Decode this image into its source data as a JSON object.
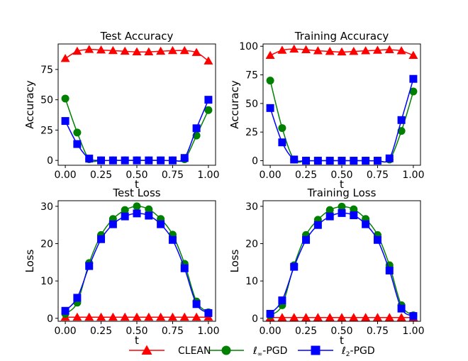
{
  "colors": {
    "clean": "#ff0000",
    "linf": "#008000",
    "l2": "#0000ff"
  },
  "legend": {
    "clean_label": "CLEAN",
    "linf_prefix": "ℓ",
    "linf_sub": "∞",
    "linf_suffix": "-PGD",
    "l2_prefix": "ℓ",
    "l2_sub": "2",
    "l2_suffix": "-PGD"
  },
  "chart_data": [
    {
      "type": "line",
      "title": "Test Accuracy",
      "xlabel": "t",
      "ylabel": "Accuracy",
      "xlim": [
        -0.05,
        1.05
      ],
      "ylim": [
        -4,
        96
      ],
      "xticks": [
        0.0,
        0.25,
        0.5,
        0.75,
        1.0
      ],
      "xtick_labels": [
        "0.00",
        "0.25",
        "0.50",
        "0.75",
        "1.00"
      ],
      "yticks": [
        0,
        25,
        50,
        75
      ],
      "ytick_labels": [
        "0",
        "25",
        "50",
        "75"
      ],
      "x": [
        0.0,
        0.0833,
        0.1667,
        0.25,
        0.3333,
        0.4167,
        0.5,
        0.5833,
        0.6667,
        0.75,
        0.8333,
        0.9167,
        1.0
      ],
      "series": [
        {
          "name": "CLEAN",
          "key": "clean",
          "marker": "triangle",
          "values": [
            84,
            90,
            91.5,
            91,
            90.5,
            90,
            89.5,
            89.5,
            90,
            90.5,
            90.5,
            89,
            82
          ]
        },
        {
          "name": "ℓ∞-PGD",
          "key": "linf",
          "marker": "circle",
          "values": [
            51,
            23,
            1,
            0,
            0,
            0,
            0,
            0,
            0,
            0,
            1,
            20.5,
            41.5
          ]
        },
        {
          "name": "ℓ2-PGD",
          "key": "l2",
          "marker": "square",
          "values": [
            32.5,
            13.5,
            1.5,
            0,
            0,
            0,
            0,
            0,
            0,
            0,
            2,
            26.5,
            50
          ]
        }
      ]
    },
    {
      "type": "line",
      "title": "Training Accuracy",
      "xlabel": "t",
      "ylabel": "Accuracy",
      "xlim": [
        -0.05,
        1.05
      ],
      "ylim": [
        -4,
        102
      ],
      "xticks": [
        0.0,
        0.25,
        0.5,
        0.75,
        1.0
      ],
      "xtick_labels": [
        "0.00",
        "0.25",
        "0.50",
        "0.75",
        "1.00"
      ],
      "yticks": [
        0,
        25,
        50,
        75,
        100
      ],
      "ytick_labels": [
        "0",
        "25",
        "50",
        "75",
        "100"
      ],
      "x": [
        0.0,
        0.0833,
        0.1667,
        0.25,
        0.3333,
        0.4167,
        0.5,
        0.5833,
        0.6667,
        0.75,
        0.8333,
        0.9167,
        1.0
      ],
      "series": [
        {
          "name": "CLEAN",
          "key": "clean",
          "marker": "triangle",
          "values": [
            92,
            96.5,
            97.5,
            97,
            96,
            95.5,
            95,
            95.5,
            96,
            96.5,
            97,
            96,
            92
          ]
        },
        {
          "name": "ℓ∞-PGD",
          "key": "linf",
          "marker": "circle",
          "values": [
            70,
            28.5,
            1,
            0,
            0,
            0,
            0,
            0,
            0,
            0,
            1,
            26,
            60.5
          ]
        },
        {
          "name": "ℓ2-PGD",
          "key": "l2",
          "marker": "square",
          "values": [
            46,
            16,
            1,
            0,
            0,
            0,
            0,
            0,
            0,
            0,
            2,
            35.5,
            71.5
          ]
        }
      ]
    },
    {
      "type": "line",
      "title": "Test Loss",
      "xlabel": "t",
      "ylabel": "Loss",
      "xlim": [
        -0.05,
        1.05
      ],
      "ylim": [
        -0.8,
        31.5
      ],
      "xticks": [
        0.0,
        0.25,
        0.5,
        0.75,
        1.0
      ],
      "xtick_labels": [
        "0.00",
        "0.25",
        "0.50",
        "0.75",
        "1.00"
      ],
      "yticks": [
        0,
        10,
        20,
        30
      ],
      "ytick_labels": [
        "0",
        "10",
        "20",
        "30"
      ],
      "x": [
        0.0,
        0.0833,
        0.1667,
        0.25,
        0.3333,
        0.4167,
        0.5,
        0.5833,
        0.6667,
        0.75,
        0.8333,
        0.9167,
        1.0
      ],
      "series": [
        {
          "name": "CLEAN",
          "key": "clean",
          "marker": "triangle",
          "values": [
            0.3,
            0.3,
            0.3,
            0.3,
            0.3,
            0.3,
            0.3,
            0.3,
            0.3,
            0.3,
            0.3,
            0.3,
            0.3
          ]
        },
        {
          "name": "ℓ∞-PGD",
          "key": "linf",
          "marker": "circle",
          "values": [
            1.2,
            4.2,
            14.8,
            22.3,
            26.6,
            29.0,
            30.0,
            29.2,
            26.6,
            22.4,
            14.6,
            4.5,
            1.6
          ]
        },
        {
          "name": "ℓ2-PGD",
          "key": "l2",
          "marker": "square",
          "values": [
            2.0,
            5.5,
            14.0,
            21.2,
            25.2,
            27.3,
            28.1,
            27.5,
            25.2,
            21.0,
            13.4,
            3.8,
            1.4
          ]
        }
      ]
    },
    {
      "type": "line",
      "title": "Training Loss",
      "xlabel": "t",
      "ylabel": "Loss",
      "xlim": [
        -0.05,
        1.05
      ],
      "ylim": [
        -0.8,
        31.5
      ],
      "xticks": [
        0.0,
        0.25,
        0.5,
        0.75,
        1.0
      ],
      "xtick_labels": [
        "0.00",
        "0.25",
        "0.50",
        "0.75",
        "1.00"
      ],
      "yticks": [
        0,
        10,
        20,
        30
      ],
      "ytick_labels": [
        "0",
        "10",
        "20",
        "30"
      ],
      "x": [
        0.0,
        0.0833,
        0.1667,
        0.25,
        0.3333,
        0.4167,
        0.5,
        0.5833,
        0.6667,
        0.75,
        0.8333,
        0.9167,
        1.0
      ],
      "series": [
        {
          "name": "CLEAN",
          "key": "clean",
          "marker": "triangle",
          "values": [
            0.2,
            0.2,
            0.2,
            0.2,
            0.2,
            0.2,
            0.2,
            0.2,
            0.2,
            0.2,
            0.2,
            0.2,
            0.2
          ]
        },
        {
          "name": "ℓ∞-PGD",
          "key": "linf",
          "marker": "circle",
          "values": [
            0.8,
            3.5,
            14.2,
            22.3,
            26.4,
            29.0,
            29.9,
            29.2,
            26.6,
            22.3,
            14.2,
            3.5,
            0.8
          ]
        },
        {
          "name": "ℓ2-PGD",
          "key": "l2",
          "marker": "square",
          "values": [
            1.2,
            4.8,
            13.8,
            21.0,
            25.0,
            27.3,
            28.2,
            27.6,
            25.2,
            21.0,
            12.8,
            2.6,
            0.6
          ]
        }
      ]
    }
  ]
}
